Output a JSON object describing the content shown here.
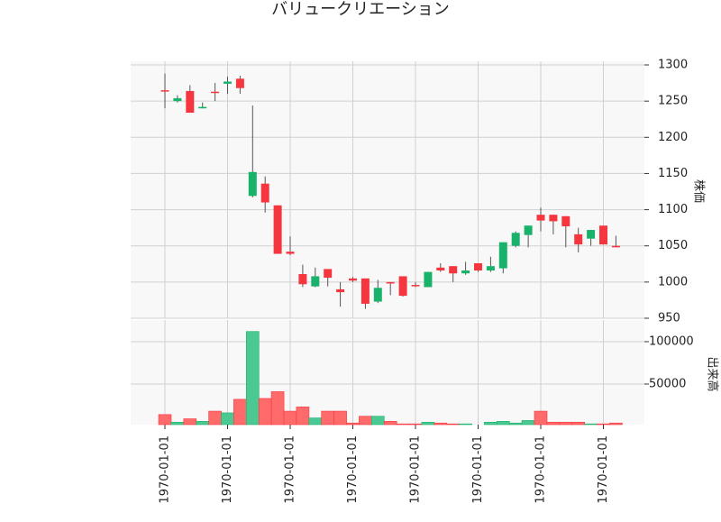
{
  "chart_data": {
    "type": "candlestick",
    "title": "バリュークリエーション",
    "ylabel": "株価",
    "volume_label": "出来高",
    "categories": [
      "1970-01-01",
      null,
      null,
      null,
      null,
      "1970-01-01",
      null,
      null,
      null,
      null,
      "1970-01-01",
      null,
      null,
      null,
      null,
      "1970-01-01",
      null,
      null,
      null,
      null,
      "1970-01-01",
      null,
      null,
      null,
      null,
      "1970-01-01",
      null,
      null,
      null,
      null,
      "1970-01-01",
      null,
      null,
      null,
      null,
      "1970-01-01",
      null
    ],
    "open": [
      1265,
      1250,
      1264,
      1240,
      1263,
      1274,
      1281,
      1119,
      1136,
      1106,
      1042,
      1011,
      994,
      1018,
      990,
      1005,
      1005,
      973,
      1000,
      1008,
      996,
      993,
      1020,
      1022,
      1012,
      1026,
      1016,
      1019,
      1050,
      1065,
      1093,
      1093,
      1091,
      1066,
      1060,
      1078,
      1050
    ],
    "high": [
      1288,
      1258,
      1272,
      1248,
      1275,
      1284,
      1285,
      1244,
      1146,
      1106,
      1063,
      1024,
      1020,
      1018,
      1000,
      1007,
      1005,
      1003,
      1000,
      1008,
      1000,
      1014,
      1026,
      1022,
      1028,
      1026,
      1035,
      1055,
      1070,
      1078,
      1103,
      1093,
      1091,
      1075,
      1072,
      1078,
      1064
    ],
    "low": [
      1240,
      1248,
      1234,
      1240,
      1250,
      1260,
      1260,
      1117,
      1096,
      1039,
      1037,
      993,
      993,
      994,
      966,
      1000,
      963,
      971,
      982,
      980,
      993,
      993,
      1014,
      1000,
      1010,
      1014,
      1014,
      1012,
      1048,
      1048,
      1070,
      1066,
      1048,
      1041,
      1050,
      1052,
      1048
    ],
    "close": [
      1264,
      1254,
      1234,
      1242,
      1262,
      1277,
      1268,
      1152,
      1110,
      1039,
      1039,
      997,
      1008,
      1006,
      986,
      1002,
      970,
      992,
      998,
      981,
      995,
      1014,
      1016,
      1012,
      1016,
      1016,
      1022,
      1055,
      1068,
      1078,
      1085,
      1084,
      1077,
      1052,
      1072,
      1052,
      1048
    ],
    "volume": [
      14000,
      5000,
      9000,
      6000,
      18000,
      16000,
      32000,
      112000,
      33000,
      41000,
      18000,
      23000,
      10000,
      18000,
      18000,
      4000,
      12000,
      12000,
      6000,
      3000,
      3000,
      5000,
      4000,
      3000,
      3000,
      2000,
      5000,
      6000,
      4000,
      7000,
      18000,
      5000,
      5000,
      5000,
      3000,
      3000,
      4000
    ],
    "up_color": "#19b26b",
    "down_color": "#f6363f",
    "up_volume_color": "#4cc893",
    "down_volume_color": "#ff6b6b",
    "ylim": [
      950,
      1305
    ],
    "yticks": [
      950,
      1000,
      1050,
      1100,
      1150,
      1200,
      1250,
      1300
    ],
    "volume_ylim": [
      2100,
      125500
    ],
    "volume_ticks": [
      50000,
      100000
    ],
    "grid": true
  }
}
